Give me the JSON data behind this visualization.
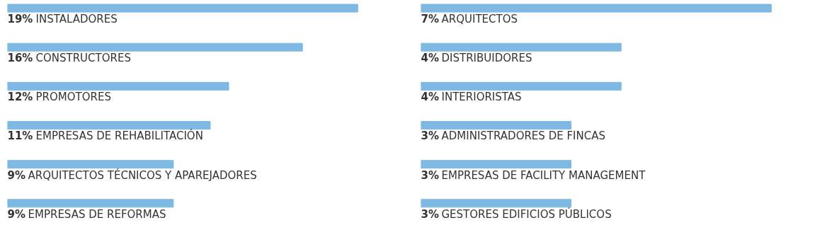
{
  "chart_data": [
    {
      "type": "bar",
      "orientation": "horizontal",
      "categories": [
        "INSTALADORES",
        "CONSTRUCTORES",
        "PROMOTORES",
        "EMPRESAS DE REHABILITACIÓN",
        "ARQUITECTOS TÉCNICOS Y APAREJADORES",
        "EMPRESAS DE REFORMAS"
      ],
      "values": [
        19,
        16,
        12,
        11,
        9,
        9
      ],
      "value_labels": [
        "19%",
        "16%",
        "12%",
        "11%",
        "9%",
        "9%"
      ],
      "color": "#7db9e2"
    },
    {
      "type": "bar",
      "orientation": "horizontal",
      "categories": [
        "ARQUITECTOS",
        "DISTRIBUIDORES",
        "INTERIORISTAS",
        "ADMINISTRADORES DE FINCAS",
        "EMPRESAS DE FACILITY MANAGEMENT",
        "GESTORES EDIFICIOS PÚBLICOS"
      ],
      "values": [
        7,
        4,
        4,
        3,
        3,
        3
      ],
      "value_labels": [
        "7%",
        "4%",
        "4%",
        "3%",
        "3%",
        "3%"
      ],
      "color": "#7db9e2"
    }
  ]
}
